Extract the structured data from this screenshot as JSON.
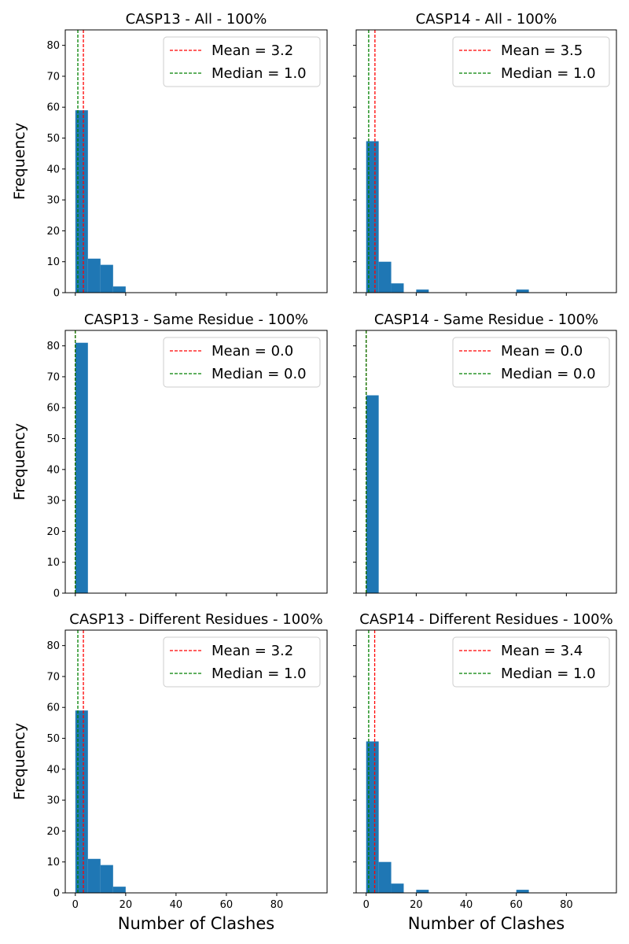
{
  "figure": {
    "shared_ylabel": "Frequency",
    "shared_xlabel": "Number of Clashes"
  },
  "chart_data": [
    {
      "type": "bar",
      "title": "CASP13 - All - 100%",
      "xlabel": "",
      "ylabel": "Frequency",
      "xlim": [
        -4,
        100
      ],
      "ylim": [
        0,
        85
      ],
      "xticks": [
        0,
        20,
        40,
        60,
        80
      ],
      "yticks": [
        0,
        10,
        20,
        30,
        40,
        50,
        60,
        70,
        80
      ],
      "bin_width": 5,
      "bins": [
        {
          "x0": 0,
          "x1": 5,
          "count": 59
        },
        {
          "x0": 5,
          "x1": 10,
          "count": 11
        },
        {
          "x0": 10,
          "x1": 15,
          "count": 9
        },
        {
          "x0": 15,
          "x1": 20,
          "count": 2
        }
      ],
      "mean": 3.2,
      "median": 1.0,
      "legend": {
        "position": "upper-right",
        "mean_label": "Mean = 3.2",
        "median_label": "Median = 1.0"
      },
      "grid": false
    },
    {
      "type": "bar",
      "title": "CASP14 - All - 100%",
      "xlabel": "",
      "ylabel": "",
      "xlim": [
        -4,
        100
      ],
      "ylim": [
        0,
        85
      ],
      "xticks": [
        0,
        20,
        40,
        60,
        80
      ],
      "yticks": [
        0,
        10,
        20,
        30,
        40,
        50,
        60,
        70,
        80
      ],
      "bin_width": 5,
      "bins": [
        {
          "x0": 0,
          "x1": 5,
          "count": 49
        },
        {
          "x0": 5,
          "x1": 10,
          "count": 10
        },
        {
          "x0": 10,
          "x1": 15,
          "count": 3
        },
        {
          "x0": 20,
          "x1": 25,
          "count": 1
        },
        {
          "x0": 60,
          "x1": 65,
          "count": 1
        }
      ],
      "mean": 3.5,
      "median": 1.0,
      "legend": {
        "position": "upper-right",
        "mean_label": "Mean = 3.5",
        "median_label": "Median = 1.0"
      },
      "grid": false
    },
    {
      "type": "bar",
      "title": "CASP13 - Same Residue - 100%",
      "xlabel": "",
      "ylabel": "Frequency",
      "xlim": [
        -4,
        100
      ],
      "ylim": [
        0,
        85
      ],
      "xticks": [
        0,
        20,
        40,
        60,
        80
      ],
      "yticks": [
        0,
        10,
        20,
        30,
        40,
        50,
        60,
        70,
        80
      ],
      "bin_width": 5,
      "bins": [
        {
          "x0": 0,
          "x1": 5,
          "count": 81
        }
      ],
      "mean": 0.0,
      "median": 0.0,
      "legend": {
        "position": "upper-right",
        "mean_label": "Mean = 0.0",
        "median_label": "Median = 0.0"
      },
      "grid": false
    },
    {
      "type": "bar",
      "title": "CASP14 - Same Residue - 100%",
      "xlabel": "",
      "ylabel": "",
      "xlim": [
        -4,
        100
      ],
      "ylim": [
        0,
        85
      ],
      "xticks": [
        0,
        20,
        40,
        60,
        80
      ],
      "yticks": [
        0,
        10,
        20,
        30,
        40,
        50,
        60,
        70,
        80
      ],
      "bin_width": 5,
      "bins": [
        {
          "x0": 0,
          "x1": 5,
          "count": 64
        }
      ],
      "mean": 0.0,
      "median": 0.0,
      "legend": {
        "position": "upper-right",
        "mean_label": "Mean = 0.0",
        "median_label": "Median = 0.0"
      },
      "grid": false
    },
    {
      "type": "bar",
      "title": "CASP13 - Different Residues - 100%",
      "xlabel": "Number of Clashes",
      "ylabel": "Frequency",
      "xlim": [
        -4,
        100
      ],
      "ylim": [
        0,
        85
      ],
      "xticks": [
        0,
        20,
        40,
        60,
        80
      ],
      "yticks": [
        0,
        10,
        20,
        30,
        40,
        50,
        60,
        70,
        80
      ],
      "bin_width": 5,
      "bins": [
        {
          "x0": 0,
          "x1": 5,
          "count": 59
        },
        {
          "x0": 5,
          "x1": 10,
          "count": 11
        },
        {
          "x0": 10,
          "x1": 15,
          "count": 9
        },
        {
          "x0": 15,
          "x1": 20,
          "count": 2
        }
      ],
      "mean": 3.2,
      "median": 1.0,
      "legend": {
        "position": "upper-right",
        "mean_label": "Mean = 3.2",
        "median_label": "Median = 1.0"
      },
      "grid": false
    },
    {
      "type": "bar",
      "title": "CASP14 - Different Residues - 100%",
      "xlabel": "Number of Clashes",
      "ylabel": "",
      "xlim": [
        -4,
        100
      ],
      "ylim": [
        0,
        85
      ],
      "xticks": [
        0,
        20,
        40,
        60,
        80
      ],
      "yticks": [
        0,
        10,
        20,
        30,
        40,
        50,
        60,
        70,
        80
      ],
      "bin_width": 5,
      "bins": [
        {
          "x0": 0,
          "x1": 5,
          "count": 49
        },
        {
          "x0": 5,
          "x1": 10,
          "count": 10
        },
        {
          "x0": 10,
          "x1": 15,
          "count": 3
        },
        {
          "x0": 20,
          "x1": 25,
          "count": 1
        },
        {
          "x0": 60,
          "x1": 65,
          "count": 1
        }
      ],
      "mean": 3.4,
      "median": 1.0,
      "legend": {
        "position": "upper-right",
        "mean_label": "Mean = 3.4",
        "median_label": "Median = 1.0"
      },
      "grid": false
    }
  ],
  "colors": {
    "bar": "#1f77b4",
    "mean_line": "#ff0000",
    "median_line": "#008000",
    "axis": "#000000",
    "legend_border": "#cccccc"
  }
}
